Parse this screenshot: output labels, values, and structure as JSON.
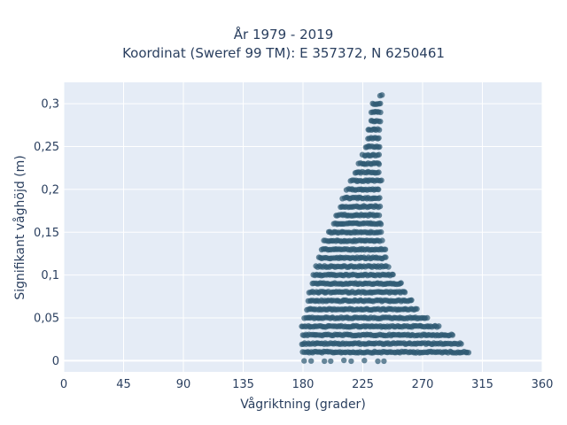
{
  "chart_data": {
    "type": "scatter",
    "title_lines": [
      "År 1979 - 2019",
      "Koordinat (Sweref 99 TM): E 357372, N 6250461"
    ],
    "xlabel": "Vågriktning (grader)",
    "ylabel": "Signifikant våghöjd (m)",
    "xlim": [
      0,
      360
    ],
    "ylim": [
      -0.013,
      0.325
    ],
    "x_ticks": [
      0,
      45,
      90,
      135,
      180,
      225,
      270,
      315,
      360
    ],
    "x_tick_labels": [
      "0",
      "45",
      "90",
      "135",
      "180",
      "225",
      "270",
      "315",
      "360"
    ],
    "y_ticks": [
      0,
      0.05,
      0.1,
      0.15,
      0.2,
      0.25,
      0.3
    ],
    "y_tick_labels": [
      "0",
      "0,05",
      "0,1",
      "0,15",
      "0,2",
      "0,25",
      "0,3"
    ],
    "grid": true,
    "marker_color": "#2f5a73",
    "plot_background": "#e5ecf6",
    "series": [
      {
        "points_description_note": "",
        "bands": [
          {
            "y": 0.0,
            "x_min": 181,
            "x_max": 248,
            "sparse": true
          },
          {
            "y": 0.01,
            "x_min": 180,
            "x_max": 305
          },
          {
            "y": 0.02,
            "x_min": 179,
            "x_max": 300
          },
          {
            "y": 0.03,
            "x_min": 180,
            "x_max": 293
          },
          {
            "y": 0.04,
            "x_min": 179,
            "x_max": 283
          },
          {
            "y": 0.05,
            "x_min": 181,
            "x_max": 274
          },
          {
            "y": 0.06,
            "x_min": 183,
            "x_max": 266
          },
          {
            "y": 0.07,
            "x_min": 184,
            "x_max": 262
          },
          {
            "y": 0.08,
            "x_min": 185,
            "x_max": 257
          },
          {
            "y": 0.09,
            "x_min": 187,
            "x_max": 255
          },
          {
            "y": 0.1,
            "x_min": 188,
            "x_max": 248
          },
          {
            "y": 0.11,
            "x_min": 190,
            "x_max": 245
          },
          {
            "y": 0.12,
            "x_min": 192,
            "x_max": 243
          },
          {
            "y": 0.13,
            "x_min": 194,
            "x_max": 242
          },
          {
            "y": 0.14,
            "x_min": 196,
            "x_max": 240
          },
          {
            "y": 0.15,
            "x_min": 199,
            "x_max": 239
          },
          {
            "y": 0.16,
            "x_min": 203,
            "x_max": 239
          },
          {
            "y": 0.17,
            "x_min": 205,
            "x_max": 238
          },
          {
            "y": 0.18,
            "x_min": 208,
            "x_max": 238
          },
          {
            "y": 0.19,
            "x_min": 210,
            "x_max": 238
          },
          {
            "y": 0.2,
            "x_min": 213,
            "x_max": 238
          },
          {
            "y": 0.21,
            "x_min": 216,
            "x_max": 239
          },
          {
            "y": 0.22,
            "x_min": 219,
            "x_max": 238
          },
          {
            "y": 0.23,
            "x_min": 222,
            "x_max": 238
          },
          {
            "y": 0.24,
            "x_min": 225,
            "x_max": 238
          },
          {
            "y": 0.25,
            "x_min": 227,
            "x_max": 238
          },
          {
            "y": 0.26,
            "x_min": 229,
            "x_max": 238
          },
          {
            "y": 0.27,
            "x_min": 229,
            "x_max": 238
          },
          {
            "y": 0.28,
            "x_min": 231,
            "x_max": 239
          },
          {
            "y": 0.29,
            "x_min": 231,
            "x_max": 239
          },
          {
            "y": 0.3,
            "x_min": 232,
            "x_max": 239
          },
          {
            "y": 0.31,
            "x_min": 238,
            "x_max": 240
          }
        ]
      }
    ]
  }
}
